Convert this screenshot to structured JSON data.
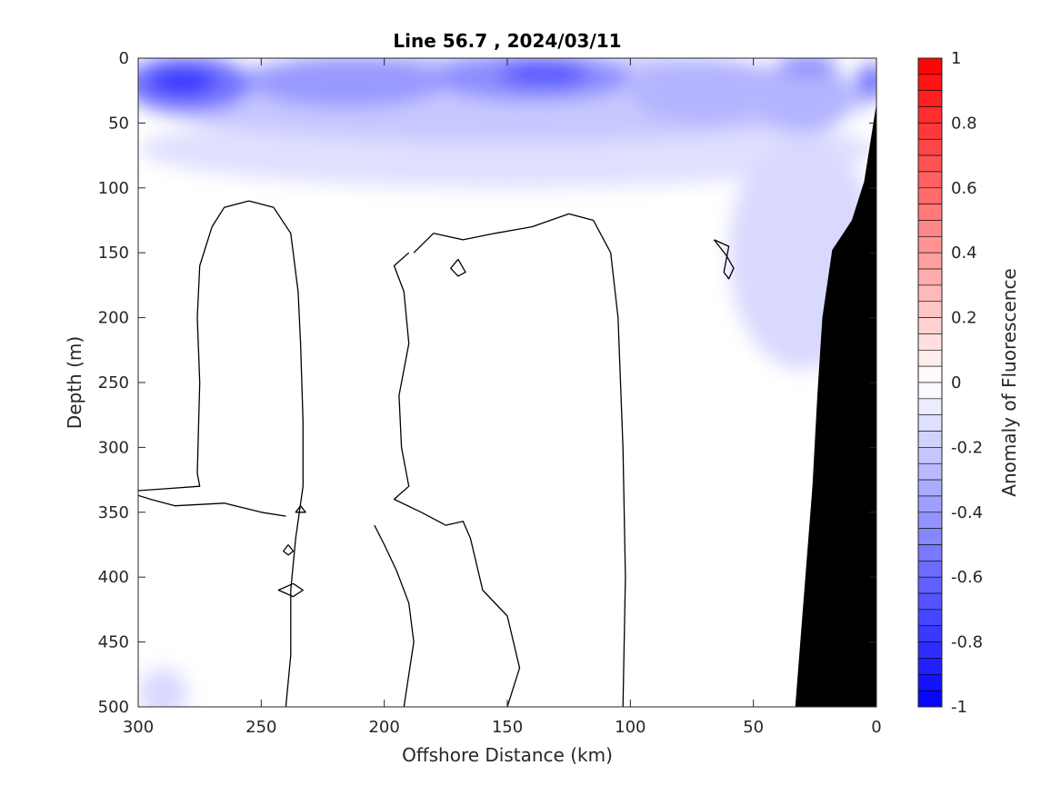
{
  "chart_data": {
    "type": "contour",
    "title": "Line 56.7 , 2024/03/11",
    "xlabel": "Offshore Distance (km)",
    "ylabel": "Depth (m)",
    "xlim": [
      300,
      0
    ],
    "ylim": [
      500,
      0
    ],
    "x_direction": "reversed",
    "y_direction": "reversed",
    "xticks": [
      "300",
      "250",
      "200",
      "150",
      "100",
      "50",
      "0"
    ],
    "yticks": [
      "0",
      "50",
      "100",
      "150",
      "200",
      "250",
      "300",
      "350",
      "400",
      "450",
      "500"
    ],
    "grid": false,
    "colorbar": {
      "label": "Anomaly of Fluorescence",
      "clim": [
        -1,
        1
      ],
      "ticks": [
        "-1",
        "-0.8",
        "-0.6",
        "-0.4",
        "-0.2",
        "0",
        "0.2",
        "0.4",
        "0.6",
        "0.8",
        "1"
      ],
      "levels": 40,
      "colormap": "blue-white-red",
      "low_color": "#0000ff",
      "mid_color": "#ffffff",
      "high_color": "#ff0000"
    },
    "bathymetry_color": "#000000",
    "bathymetry": [
      [
        33,
        500
      ],
      [
        26,
        330
      ],
      [
        24,
        260
      ],
      [
        22,
        200
      ],
      [
        18,
        148
      ],
      [
        10,
        125
      ],
      [
        5,
        95
      ],
      [
        0,
        35
      ]
    ],
    "anomaly_patches": [
      {
        "x": 282,
        "y": 18,
        "rx": 14,
        "ry": 10,
        "value": -0.8
      },
      {
        "x": 280,
        "y": 20,
        "rx": 26,
        "ry": 22,
        "value": -0.55
      },
      {
        "x": 135,
        "y": 12,
        "rx": 18,
        "ry": 10,
        "value": -0.65
      },
      {
        "x": 140,
        "y": 15,
        "rx": 40,
        "ry": 18,
        "value": -0.45
      },
      {
        "x": 215,
        "y": 18,
        "rx": 40,
        "ry": 20,
        "value": -0.4
      },
      {
        "x": 28,
        "y": 5,
        "rx": 12,
        "ry": 8,
        "value": -0.45
      },
      {
        "x": 2,
        "y": 18,
        "rx": 6,
        "ry": 14,
        "value": -0.55
      },
      {
        "x": 30,
        "y": 30,
        "rx": 20,
        "ry": 28,
        "value": -0.3
      },
      {
        "x": 70,
        "y": 25,
        "rx": 30,
        "ry": 25,
        "value": -0.3
      },
      {
        "x": 150,
        "y": 30,
        "rx": 150,
        "ry": 35,
        "value": -0.22
      },
      {
        "x": 150,
        "y": 70,
        "rx": 150,
        "ry": 30,
        "value": -0.12
      },
      {
        "x": 30,
        "y": 150,
        "rx": 30,
        "ry": 90,
        "value": -0.15
      },
      {
        "x": 290,
        "y": 490,
        "rx": 10,
        "ry": 20,
        "value": -0.15
      }
    ],
    "zero_contours": [
      {
        "points": [
          [
            255,
            110
          ],
          [
            245,
            115
          ],
          [
            238,
            135
          ],
          [
            235,
            180
          ],
          [
            234,
            220
          ],
          [
            233,
            280
          ],
          [
            233,
            330
          ],
          [
            236,
            370
          ],
          [
            238,
            410
          ],
          [
            238,
            460
          ],
          [
            240,
            500
          ]
        ]
      },
      {
        "points": [
          [
            255,
            110
          ],
          [
            265,
            115
          ],
          [
            270,
            130
          ],
          [
            275,
            160
          ],
          [
            276,
            200
          ],
          [
            275,
            250
          ],
          [
            276,
            320
          ],
          [
            275,
            330
          ],
          [
            290,
            332
          ],
          [
            305,
            334
          ],
          [
            295,
            340
          ],
          [
            285,
            345
          ],
          [
            265,
            343
          ],
          [
            250,
            350
          ],
          [
            240,
            353
          ]
        ]
      },
      {
        "points": [
          [
            204,
            360
          ],
          [
            200,
            375
          ],
          [
            195,
            395
          ],
          [
            190,
            420
          ],
          [
            188,
            450
          ],
          [
            192,
            500
          ]
        ]
      },
      {
        "points": [
          [
            188,
            150
          ],
          [
            180,
            135
          ],
          [
            168,
            140
          ],
          [
            155,
            135
          ],
          [
            140,
            130
          ],
          [
            125,
            120
          ],
          [
            115,
            125
          ],
          [
            108,
            150
          ],
          [
            105,
            200
          ],
          [
            103,
            300
          ],
          [
            102,
            400
          ],
          [
            103,
            500
          ]
        ]
      },
      {
        "points": [
          [
            190,
            150
          ],
          [
            196,
            160
          ],
          [
            192,
            180
          ],
          [
            190,
            220
          ],
          [
            194,
            260
          ],
          [
            193,
            300
          ],
          [
            190,
            330
          ],
          [
            196,
            340
          ],
          [
            185,
            350
          ],
          [
            175,
            360
          ],
          [
            168,
            357
          ],
          [
            165,
            370
          ],
          [
            160,
            410
          ],
          [
            150,
            430
          ],
          [
            145,
            470
          ],
          [
            150,
            500
          ]
        ]
      }
    ],
    "small_contours": [
      {
        "points": [
          [
            170,
            155
          ],
          [
            167,
            165
          ],
          [
            170,
            168
          ],
          [
            173,
            162
          ],
          [
            170,
            155
          ]
        ]
      },
      {
        "points": [
          [
            66,
            140
          ],
          [
            60,
            145
          ],
          [
            62,
            165
          ],
          [
            60,
            170
          ],
          [
            58,
            162
          ],
          [
            61,
            152
          ],
          [
            66,
            140
          ]
        ]
      },
      {
        "points": [
          [
            239,
            375
          ],
          [
            237,
            380
          ],
          [
            239,
            383
          ],
          [
            241,
            380
          ],
          [
            239,
            375
          ]
        ]
      },
      {
        "points": [
          [
            237,
            405
          ],
          [
            233,
            410
          ],
          [
            237,
            415
          ],
          [
            243,
            410
          ],
          [
            237,
            405
          ]
        ]
      },
      {
        "points": [
          [
            234,
            345
          ],
          [
            232,
            350
          ],
          [
            236,
            350
          ],
          [
            234,
            345
          ]
        ]
      }
    ]
  }
}
